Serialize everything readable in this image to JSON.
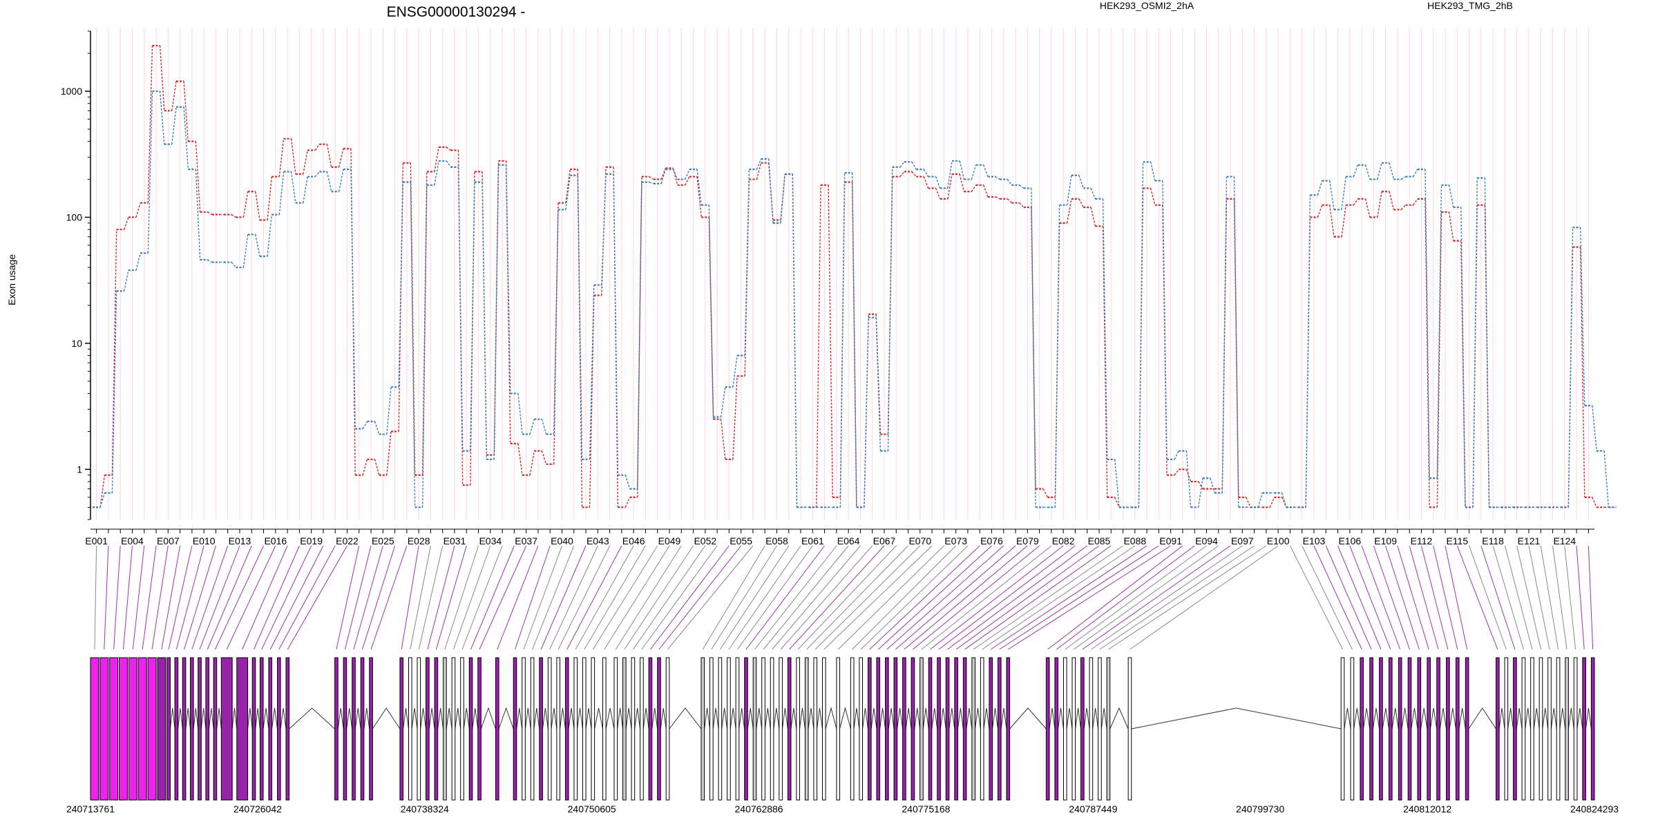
{
  "colors": {
    "series_a": "#d62728",
    "series_b": "#3a7ebf",
    "exon_highlight": "#ee22ee",
    "exon_grey": "#cccccc",
    "connector_grey": "#888888",
    "connector_purple": "#9933aa",
    "gridline": "#ffd6dc"
  },
  "chart_data": {
    "type": "line",
    "title": "ENSG00000130294 -",
    "ylabel": "Exon usage",
    "y_scale": "log",
    "ylim": [
      0.4,
      3000
    ],
    "y_ticks": [
      1,
      10,
      100,
      1000
    ],
    "y_tick_labels": [
      "1",
      "10",
      "100",
      "1000"
    ],
    "exon_count": 126,
    "exon_tick_labels": [
      "E001",
      "E004",
      "E007",
      "E010",
      "E013",
      "E016",
      "E019",
      "E022",
      "E025",
      "E028",
      "E031",
      "E034",
      "E037",
      "E040",
      "E043",
      "E046",
      "E049",
      "E052",
      "E055",
      "E058",
      "E061",
      "E064",
      "E067",
      "E070",
      "E073",
      "E076",
      "E079",
      "E082",
      "E085",
      "E088",
      "E091",
      "E094",
      "E097",
      "E100",
      "E103",
      "E106",
      "E109",
      "E112",
      "E115",
      "E118",
      "E121",
      "E124"
    ],
    "series": [
      {
        "name": "HEK293_OSMI2_2hA",
        "values": [
          0.5,
          0.9,
          80,
          100,
          130,
          2300,
          700,
          1200,
          400,
          110,
          105,
          105,
          100,
          160,
          95,
          210,
          420,
          220,
          340,
          380,
          250,
          350,
          0.9,
          1.2,
          0.9,
          2.0,
          270,
          0.9,
          230,
          360,
          340,
          0.75,
          230,
          1.3,
          280,
          1.6,
          0.9,
          1.4,
          1.1,
          130,
          240,
          0.5,
          24,
          250,
          0.5,
          0.6,
          210,
          200,
          245,
          180,
          210,
          100,
          2.5,
          1.2,
          5.5,
          200,
          270,
          95,
          220,
          0.5,
          0.5,
          180,
          0.6,
          190,
          0.5,
          17,
          1.9,
          210,
          230,
          210,
          170,
          140,
          220,
          160,
          180,
          145,
          140,
          130,
          120,
          0.7,
          0.6,
          90,
          140,
          120,
          85,
          0.6,
          0.5,
          0.5,
          170,
          125,
          0.9,
          1.0,
          0.8,
          0.7,
          0.7,
          140,
          0.6,
          0.5,
          0.5,
          0.6,
          0.5,
          0.5,
          100,
          125,
          70,
          125,
          140,
          100,
          160,
          115,
          125,
          140,
          0.5,
          110,
          65,
          0.5,
          125,
          0.5,
          0.5,
          0.5,
          0.5,
          0.5,
          0.5,
          0.5,
          58,
          0.6,
          0.5,
          0.5
        ],
        "color": "#d62728"
      },
      {
        "name": "HEK293_TMG_2hB",
        "values": [
          0.5,
          0.65,
          26,
          38,
          52,
          1000,
          380,
          750,
          240,
          46,
          44,
          44,
          40,
          73,
          49,
          105,
          230,
          130,
          210,
          230,
          160,
          240,
          2.1,
          2.4,
          1.9,
          4.5,
          190,
          0.5,
          180,
          280,
          250,
          1.4,
          190,
          1.2,
          260,
          4.0,
          1.9,
          2.5,
          1.9,
          115,
          215,
          1.2,
          29,
          220,
          0.9,
          0.7,
          190,
          185,
          240,
          200,
          240,
          125,
          2.6,
          4.5,
          8.0,
          240,
          290,
          90,
          220,
          0.5,
          0.5,
          0.5,
          0.5,
          225,
          0.5,
          16,
          1.4,
          250,
          275,
          240,
          210,
          170,
          280,
          200,
          260,
          210,
          200,
          180,
          170,
          0.5,
          0.5,
          125,
          215,
          170,
          140,
          1.2,
          0.5,
          0.5,
          275,
          195,
          1.2,
          1.4,
          0.5,
          0.85,
          0.65,
          210,
          0.5,
          0.5,
          0.65,
          0.65,
          0.5,
          0.5,
          150,
          195,
          115,
          210,
          260,
          200,
          270,
          200,
          210,
          240,
          0.85,
          180,
          120,
          0.5,
          205,
          0.5,
          0.5,
          0.5,
          0.5,
          0.5,
          0.5,
          0.5,
          83,
          3.2,
          1.4,
          0.5
        ],
        "color": "#3a7ebf"
      }
    ],
    "genomic_ticks": [
      "240713761",
      "240726042",
      "240738324",
      "240750605",
      "240762886",
      "240775168",
      "240787449",
      "240799730",
      "240812012",
      "240824293"
    ],
    "legend": [
      "HEK293_OSMI2_2hA",
      "HEK293_TMG_2hB"
    ],
    "legend_position": "top"
  }
}
